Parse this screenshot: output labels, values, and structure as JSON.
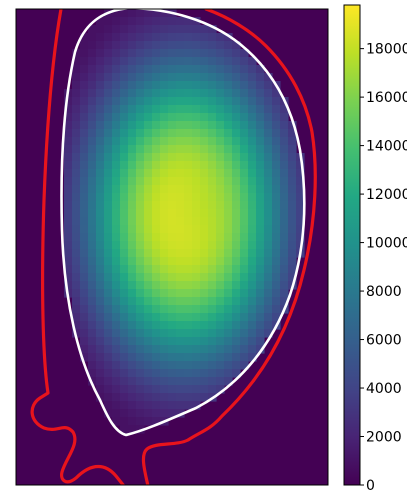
{
  "chart_data": {
    "type": "heatmap",
    "title": "",
    "xlabel": "",
    "ylabel": "",
    "colormap": "viridis",
    "vmin": 0,
    "vmax": 19800,
    "peak_value": 18800,
    "background_value": 0,
    "grid": false,
    "colorbar": {
      "position": "right",
      "ticks": [
        0,
        2000,
        4000,
        6000,
        8000,
        10000,
        12000,
        14000,
        16000,
        18000
      ],
      "tick_labels": [
        "0",
        "2000",
        "4000",
        "6000",
        "8000",
        "10000",
        "12000",
        "14000",
        "16000",
        "18000"
      ]
    },
    "overlays": [
      {
        "name": "outer-boundary",
        "color": "#e8141c"
      },
      {
        "name": "inner-boundary",
        "color": "#ffffff"
      }
    ]
  },
  "colors": {
    "background": "#440154",
    "outer_line": "#e8141c",
    "inner_line": "#ffffff",
    "frame": "#000000"
  }
}
